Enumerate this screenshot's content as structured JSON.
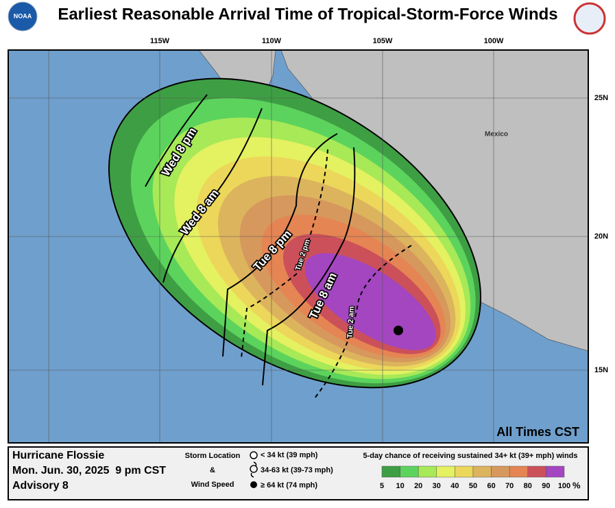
{
  "header": {
    "title": "Earliest Reasonable Arrival Time of Tropical-Storm-Force Winds"
  },
  "map": {
    "lon_labels": [
      "115W",
      "110W",
      "105W",
      "100W"
    ],
    "lat_labels": [
      "25N",
      "20N",
      "15N"
    ],
    "place_label": "Mexico",
    "times_note": "All Times CST",
    "contour_labels": [
      "Wed 8 pm",
      "Wed 8 am",
      "Tue 8 pm",
      "Tue 8 am",
      "Tue 2 pm",
      "Tue 2 am"
    ]
  },
  "legend": {
    "storm_name": "Hurricane Flossie",
    "datetime": "Mon. Jun. 30, 2025  9 pm CST",
    "advisory": "Advisory 8",
    "storm_location_title": "Storm Location",
    "amp": "&",
    "wind_speed_title": "Wind Speed",
    "symbols": [
      "< 34 kt (39 mph)",
      "34-63 kt (39-73 mph)",
      "≥ 64 kt (74 mph)"
    ],
    "scale_title": "5-day chance of receiving sustained 34+ kt (39+ mph) winds",
    "scale_labels": [
      "5",
      "10",
      "20",
      "30",
      "40",
      "50",
      "60",
      "70",
      "80",
      "90",
      "100"
    ],
    "scale_unit": "%",
    "scale_colors": [
      "#3e9e44",
      "#5cd35c",
      "#a7e957",
      "#e4f161",
      "#ecd75a",
      "#dcb45e",
      "#d6985c",
      "#e58553",
      "#cc505a",
      "#b05c6a",
      "#a346c0"
    ]
  }
}
